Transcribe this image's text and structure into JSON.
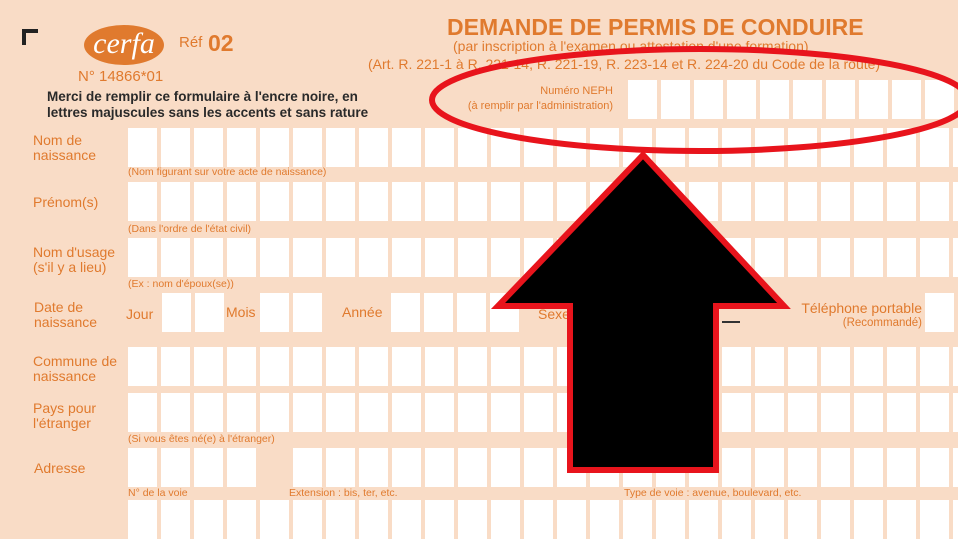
{
  "header": {
    "logo_text": "cerfa",
    "ref_label": "Réf",
    "ref_number": "02",
    "form_number": "N° 14866*01",
    "instructions_line1": "Merci de remplir ce formulaire à l'encre noire, en",
    "instructions_line2": "lettres majuscules sans les accents et sans rature",
    "title": "DEMANDE DE PERMIS DE CONDUIRE",
    "subtitle": "(par inscription à l'examen ou attestation d'une formation)",
    "legal_ref": "(Art. R. 221-1 à R. 221-14, R. 221-19, R. 223-14 et R. 224-20 du Code de la route)",
    "neph_label": "Numéro NEPH",
    "neph_hint": "(à remplir par l'administration)"
  },
  "fields": {
    "nom_naissance": {
      "label1": "Nom de",
      "label2": "naissance",
      "hint": "(Nom figurant sur votre acte de naissance)"
    },
    "prenoms": {
      "label": "Prénom(s)",
      "hint": "(Dans l'ordre de l'état civil)"
    },
    "nom_usage": {
      "label1": "Nom d'usage",
      "label2": "(s'il y a lieu)",
      "hint": "(Ex : nom d'époux(se))"
    },
    "date_naissance": {
      "label1": "Date de",
      "label2": "naissance",
      "jour": "Jour",
      "mois": "Mois",
      "annee": "Année",
      "sexe": "Sexe"
    },
    "telephone": {
      "label": "Téléphone portable",
      "hint": "(Recommandé)"
    },
    "commune": {
      "label1": "Commune de",
      "label2": "naissance"
    },
    "pays": {
      "label1": "Pays pour",
      "label2": "l'étranger",
      "hint": "(Si vous êtes né(e) à l'étranger)"
    },
    "adresse": {
      "label": "Adresse",
      "hint_numero": "N° de la voie",
      "hint_extension": "Extension : bis, ter, etc.",
      "hint_type": "Type de voie : avenue, boulevard, etc."
    }
  },
  "annotation": {
    "ellipse_color": "#e8141c",
    "arrow_fill": "#000000",
    "arrow_stroke": "#e8141c"
  },
  "colors": {
    "form_bg": "#f9dcc6",
    "form_text": "#e07a2e"
  }
}
